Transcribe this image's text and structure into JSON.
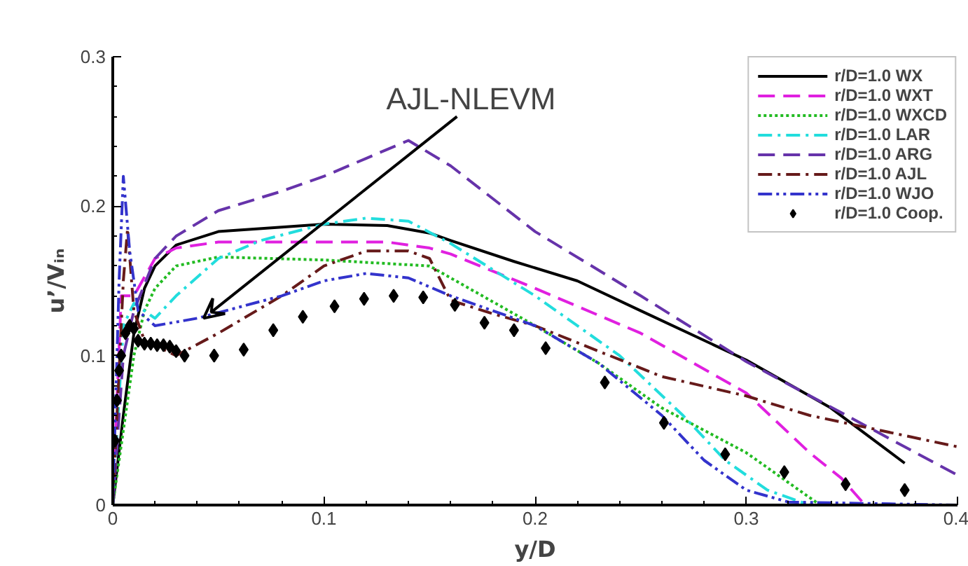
{
  "chart_data": {
    "type": "line",
    "xlabel": "y/D",
    "ylabel": "u’/Vᵢₙ",
    "xlim": [
      0,
      0.4
    ],
    "ylim": [
      0,
      0.3
    ],
    "xticks": [
      0,
      0.1,
      0.2,
      0.3,
      0.4
    ],
    "yticks": [
      0,
      0.1,
      0.2,
      0.3
    ],
    "grid": false,
    "legend": "top right",
    "annotations": [
      {
        "text": "AJL-NLEVM",
        "x": 0.043,
        "y": 0.125
      }
    ],
    "series": [
      {
        "name": "r/D=1.0 WX",
        "color": "#000000",
        "line_style": "solid",
        "x": [
          0,
          0.005,
          0.01,
          0.015,
          0.02,
          0.03,
          0.05,
          0.08,
          0.1,
          0.13,
          0.15,
          0.16,
          0.19,
          0.22,
          0.25,
          0.3,
          0.34,
          0.375
        ],
        "values": [
          0,
          0.06,
          0.115,
          0.145,
          0.16,
          0.174,
          0.183,
          0.186,
          0.188,
          0.187,
          0.182,
          0.177,
          0.163,
          0.15,
          0.13,
          0.097,
          0.065,
          0.028
        ]
      },
      {
        "name": "r/D=1.0 WXT",
        "color": "#e020e0",
        "line_style": "dashed",
        "x": [
          0,
          0.004,
          0.01,
          0.02,
          0.03,
          0.05,
          0.1,
          0.13,
          0.15,
          0.16,
          0.2,
          0.25,
          0.3,
          0.33,
          0.345,
          0.355
        ],
        "values": [
          0,
          0.14,
          0.14,
          0.165,
          0.172,
          0.176,
          0.176,
          0.176,
          0.172,
          0.168,
          0.145,
          0.115,
          0.075,
          0.035,
          0.018,
          0.002
        ]
      },
      {
        "name": "r/D=1.0 WXCD",
        "color": "#22bb22",
        "line_style": "dotted",
        "x": [
          0,
          0.01,
          0.015,
          0.02,
          0.03,
          0.05,
          0.1,
          0.15,
          0.16,
          0.2,
          0.23,
          0.26,
          0.3,
          0.32,
          0.335,
          0.4
        ],
        "values": [
          0,
          0.1,
          0.13,
          0.145,
          0.16,
          0.166,
          0.164,
          0.16,
          0.152,
          0.12,
          0.095,
          0.065,
          0.035,
          0.015,
          0,
          0
        ]
      },
      {
        "name": "r/D=1.0 LAR",
        "color": "#22dddd",
        "line_style": "dashdot",
        "x": [
          0,
          0.005,
          0.01,
          0.02,
          0.03,
          0.05,
          0.07,
          0.1,
          0.12,
          0.14,
          0.16,
          0.2,
          0.24,
          0.27,
          0.29,
          0.31,
          0.33,
          0.4
        ],
        "values": [
          0,
          0.12,
          0.135,
          0.125,
          0.14,
          0.165,
          0.177,
          0.188,
          0.192,
          0.19,
          0.175,
          0.14,
          0.1,
          0.06,
          0.03,
          0.01,
          0,
          0
        ]
      },
      {
        "name": "r/D=1.0 ARG",
        "color": "#6633aa",
        "line_style": "dashed",
        "x": [
          0,
          0.005,
          0.01,
          0.02,
          0.03,
          0.05,
          0.08,
          0.1,
          0.12,
          0.14,
          0.16,
          0.2,
          0.25,
          0.3,
          0.35,
          0.4
        ],
        "values": [
          0,
          0.1,
          0.13,
          0.165,
          0.18,
          0.197,
          0.21,
          0.22,
          0.232,
          0.244,
          0.227,
          0.183,
          0.14,
          0.096,
          0.058,
          0.02
        ]
      },
      {
        "name": "r/D=1.0 AJL",
        "color": "#661a1a",
        "line_style": "dashdot",
        "x": [
          0,
          0.005,
          0.007,
          0.01,
          0.015,
          0.03,
          0.05,
          0.08,
          0.1,
          0.12,
          0.14,
          0.15,
          0.16,
          0.18,
          0.2,
          0.26,
          0.3,
          0.33,
          0.4
        ],
        "values": [
          0,
          0.15,
          0.185,
          0.13,
          0.11,
          0.1,
          0.115,
          0.14,
          0.16,
          0.17,
          0.17,
          0.165,
          0.137,
          0.128,
          0.12,
          0.086,
          0.073,
          0.06,
          0.039
        ]
      },
      {
        "name": "r/D=1.0 WJO",
        "color": "#3333cc",
        "line_style": "dashdotdot",
        "x": [
          0,
          0.003,
          0.005,
          0.008,
          0.012,
          0.02,
          0.04,
          0.08,
          0.1,
          0.12,
          0.14,
          0.16,
          0.18,
          0.2,
          0.23,
          0.26,
          0.28,
          0.3,
          0.32,
          0.4
        ],
        "values": [
          0,
          0.15,
          0.22,
          0.17,
          0.13,
          0.12,
          0.125,
          0.14,
          0.15,
          0.155,
          0.152,
          0.14,
          0.13,
          0.12,
          0.095,
          0.06,
          0.03,
          0.01,
          0.002,
          0
        ]
      },
      {
        "name": "r/D=1.0 Coop.",
        "color": "#000000",
        "type": "scatter",
        "marker": "diamond",
        "x": [
          0.001,
          0.002,
          0.003,
          0.004,
          0.006,
          0.008,
          0.01,
          0.012,
          0.015,
          0.018,
          0.021,
          0.024,
          0.027,
          0.03,
          0.034,
          0.048,
          0.062,
          0.076,
          0.09,
          0.105,
          0.119,
          0.133,
          0.147,
          0.162,
          0.176,
          0.19,
          0.205,
          0.233,
          0.261,
          0.29,
          0.318,
          0.347,
          0.375
        ],
        "values": [
          0.043,
          0.07,
          0.09,
          0.1,
          0.115,
          0.12,
          0.118,
          0.11,
          0.108,
          0.108,
          0.107,
          0.107,
          0.106,
          0.103,
          0.1,
          0.1,
          0.104,
          0.117,
          0.126,
          0.133,
          0.138,
          0.14,
          0.139,
          0.134,
          0.122,
          0.117,
          0.105,
          0.082,
          0.055,
          0.034,
          0.022,
          0.014,
          0.01
        ]
      }
    ]
  }
}
